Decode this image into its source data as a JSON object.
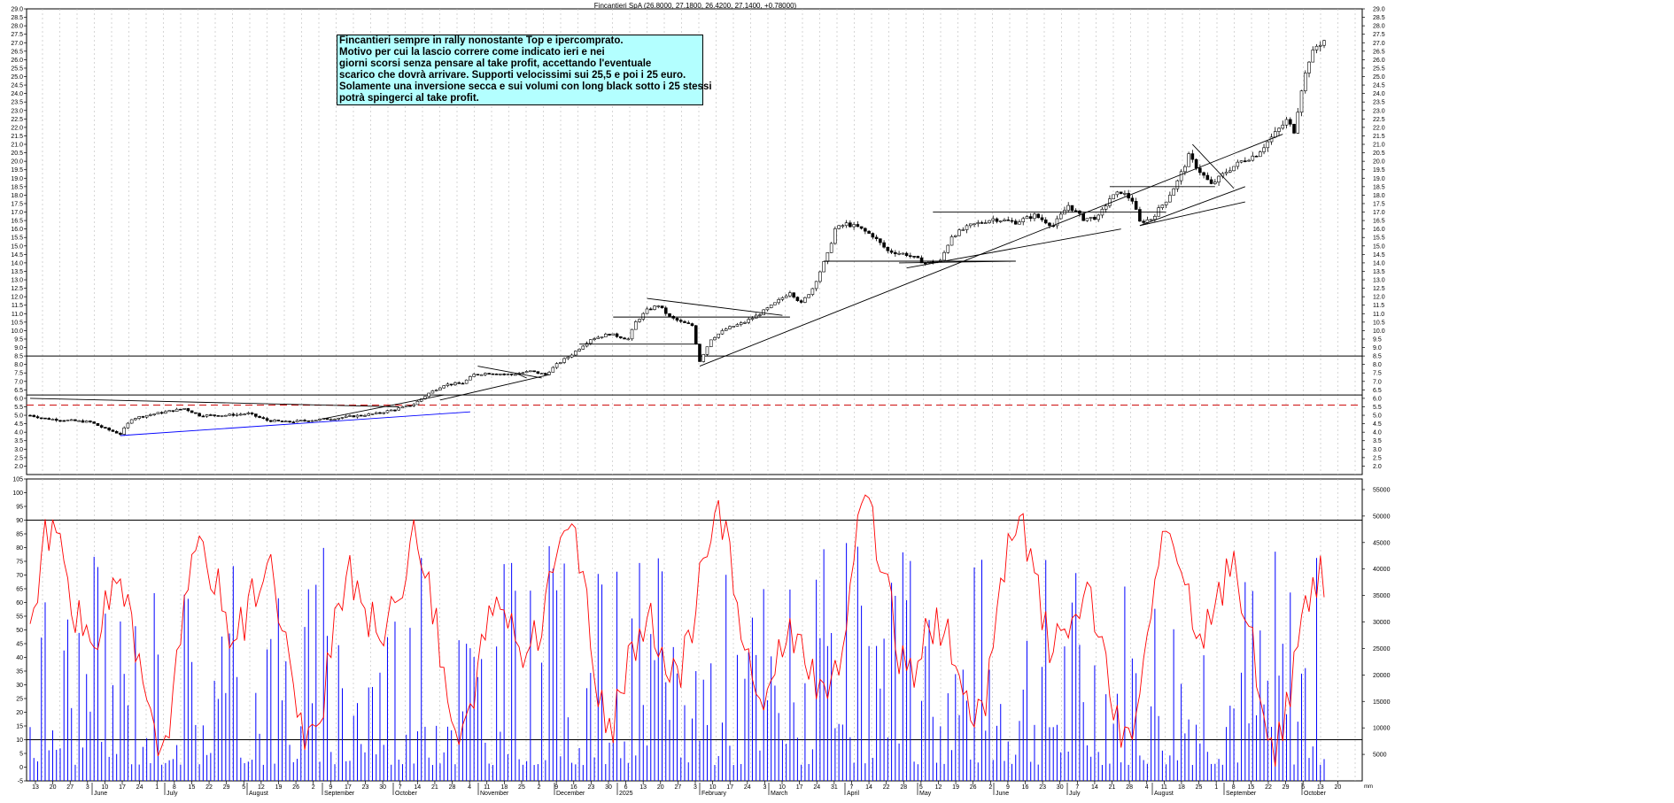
{
  "title": "Fincantieri SpA (26.8000, 27.1800, 26.4200, 27.1400, +0.78000)",
  "annotation": {
    "lines": [
      "Fincantieri  sempre in rally nonostante Top e ipercomprato.",
      "Motivo per cui la lascio correre come indicato ieri e nei",
      "giorni scorsi senza pensare al take profit, accettando l'eventuale",
      "scarico che dovrà arrivare. Supporti velocissimi sui 25,5 e poi i 25 euro.",
      "Solamente una inversione secca e sui volumi con long black sotto i 25 stessi",
      "potrà spingerci al take profit."
    ]
  },
  "colors": {
    "candle": "#000000",
    "oscillator": "#ff0000",
    "volume": "#0000ff",
    "support_dashed": "#cc0000",
    "support_blue": "#0000ff",
    "annotation_bg": "#b3ffff"
  },
  "chart_data": [
    {
      "type": "candlestick",
      "title": "Fincantieri SpA (26.8000, 27.1800, 26.4200, 27.1400, +0.78000)",
      "ylim": [
        1.5,
        29.0
      ],
      "y_ticks": [
        "2.0",
        "2.5",
        "3.0",
        "3.5",
        "4.0",
        "4.5",
        "5.0",
        "5.5",
        "6.0",
        "6.5",
        "7.0",
        "7.5",
        "8.0",
        "8.5",
        "9.0",
        "9.5",
        "10.0",
        "10.5",
        "11.0",
        "11.5",
        "12.0",
        "12.5",
        "13.0",
        "13.5",
        "14.0",
        "14.5",
        "15.0",
        "15.5",
        "16.0",
        "16.5",
        "17.0",
        "17.5",
        "18.0",
        "18.5",
        "19.0",
        "19.5",
        "20.0",
        "20.5",
        "21.0",
        "21.5",
        "22.0",
        "22.5",
        "23.0",
        "23.5",
        "24.0",
        "24.5",
        "25.0",
        "25.5",
        "26.0",
        "26.5",
        "27.0",
        "27.5",
        "28.0",
        "28.5",
        "29.0"
      ],
      "last_bar": {
        "open": 26.8,
        "high": 27.18,
        "low": 26.42,
        "close": 27.14,
        "change": 0.78
      },
      "path_points": [
        [
          0,
          5.0
        ],
        [
          4,
          4.8
        ],
        [
          10,
          4.7
        ],
        [
          16,
          4.6
        ],
        [
          20,
          4.2
        ],
        [
          24,
          3.9
        ],
        [
          27,
          4.8
        ],
        [
          31,
          5.0
        ],
        [
          36,
          5.2
        ],
        [
          41,
          5.4
        ],
        [
          45,
          5.0
        ],
        [
          52,
          5.0
        ],
        [
          58,
          5.1
        ],
        [
          63,
          4.7
        ],
        [
          68,
          4.6
        ],
        [
          74,
          4.7
        ],
        [
          80,
          4.8
        ],
        [
          86,
          4.95
        ],
        [
          92,
          5.1
        ],
        [
          98,
          5.4
        ],
        [
          102,
          5.65
        ],
        [
          106,
          6.3
        ],
        [
          110,
          6.8
        ],
        [
          115,
          6.9
        ],
        [
          118,
          7.4
        ],
        [
          122,
          7.5
        ],
        [
          128,
          7.4
        ],
        [
          133,
          7.6
        ],
        [
          137,
          7.4
        ],
        [
          140,
          8.0
        ],
        [
          144,
          8.6
        ],
        [
          149,
          9.5
        ],
        [
          154,
          9.8
        ],
        [
          159,
          9.5
        ],
        [
          161,
          10.5
        ],
        [
          164,
          11.2
        ],
        [
          167,
          11.5
        ],
        [
          170,
          10.8
        ],
        [
          173,
          10.5
        ],
        [
          176,
          10.3
        ],
        [
          178,
          8.2
        ],
        [
          181,
          9.5
        ],
        [
          185,
          10.1
        ],
        [
          190,
          10.5
        ],
        [
          194,
          11.0
        ],
        [
          198,
          11.6
        ],
        [
          202,
          12.3
        ],
        [
          205,
          11.6
        ],
        [
          208,
          12.5
        ],
        [
          210,
          13.5
        ],
        [
          212,
          14.5
        ],
        [
          214,
          16.0
        ],
        [
          217,
          16.3
        ],
        [
          220,
          16.1
        ],
        [
          224,
          15.6
        ],
        [
          228,
          14.7
        ],
        [
          233,
          14.5
        ],
        [
          238,
          14.0
        ],
        [
          242,
          14.1
        ],
        [
          245,
          15.6
        ],
        [
          250,
          16.2
        ],
        [
          256,
          16.6
        ],
        [
          262,
          16.4
        ],
        [
          267,
          16.8
        ],
        [
          272,
          16.2
        ],
        [
          276,
          17.4
        ],
        [
          280,
          16.6
        ],
        [
          284,
          16.7
        ],
        [
          287,
          17.8
        ],
        [
          290,
          18.2
        ],
        [
          293,
          17.7
        ],
        [
          295,
          16.4
        ],
        [
          298,
          16.6
        ],
        [
          302,
          17.7
        ],
        [
          305,
          18.8
        ],
        [
          308,
          20.3
        ],
        [
          311,
          19.4
        ],
        [
          314,
          18.6
        ],
        [
          318,
          19.4
        ],
        [
          322,
          20.0
        ],
        [
          326,
          20.4
        ],
        [
          330,
          21.4
        ],
        [
          334,
          22.4
        ],
        [
          336,
          21.8
        ],
        [
          338,
          24.3
        ],
        [
          340,
          26.0
        ],
        [
          342,
          26.8
        ],
        [
          344,
          27.14
        ]
      ],
      "lines": {
        "horizontal_levels": [
          8.5,
          6.2
        ],
        "dashed_support": 5.6
      }
    },
    {
      "type": "line_with_bars",
      "oscillator_ylim": [
        -5,
        105
      ],
      "oscillator_ticks": [
        "-5",
        "0",
        "5",
        "10",
        "15",
        "20",
        "25",
        "30",
        "35",
        "40",
        "45",
        "50",
        "55",
        "60",
        "65",
        "70",
        "75",
        "80",
        "85",
        "90",
        "95",
        "100",
        "105"
      ],
      "oscillator_levels": [
        90,
        10
      ],
      "volume_ticks": [
        "5000",
        "10000",
        "15000",
        "20000",
        "25000",
        "30000",
        "35000",
        "40000",
        "45000",
        "50000",
        "55000"
      ],
      "volume_ylim": [
        0,
        57000
      ]
    }
  ],
  "x_axis": {
    "days": [
      "13",
      "20",
      "27",
      "3",
      "10",
      "17",
      "24",
      "1",
      "8",
      "15",
      "22",
      "29",
      "5",
      "12",
      "19",
      "26",
      "2",
      "9",
      "17",
      "23",
      "30",
      "7",
      "14",
      "21",
      "28",
      "4",
      "11",
      "18",
      "25",
      "2",
      "9",
      "16",
      "23",
      "30",
      "6",
      "13",
      "20",
      "27",
      "3",
      "10",
      "17",
      "24",
      "3",
      "10",
      "17",
      "24",
      "31",
      "7",
      "14",
      "22",
      "28",
      "5",
      "12",
      "19",
      "26",
      "2",
      "9",
      "16",
      "23",
      "30",
      "7",
      "14",
      "21",
      "28",
      "4",
      "11",
      "18",
      "25",
      "1",
      "8",
      "15",
      "22",
      "29",
      "6",
      "13",
      "20"
    ],
    "months": [
      "June",
      "July",
      "August",
      "September",
      "October",
      "November",
      "December",
      "2025",
      "February",
      "March",
      "April",
      "May",
      "June",
      "July",
      "August",
      "September",
      "October"
    ],
    "year_tag": "mm"
  }
}
